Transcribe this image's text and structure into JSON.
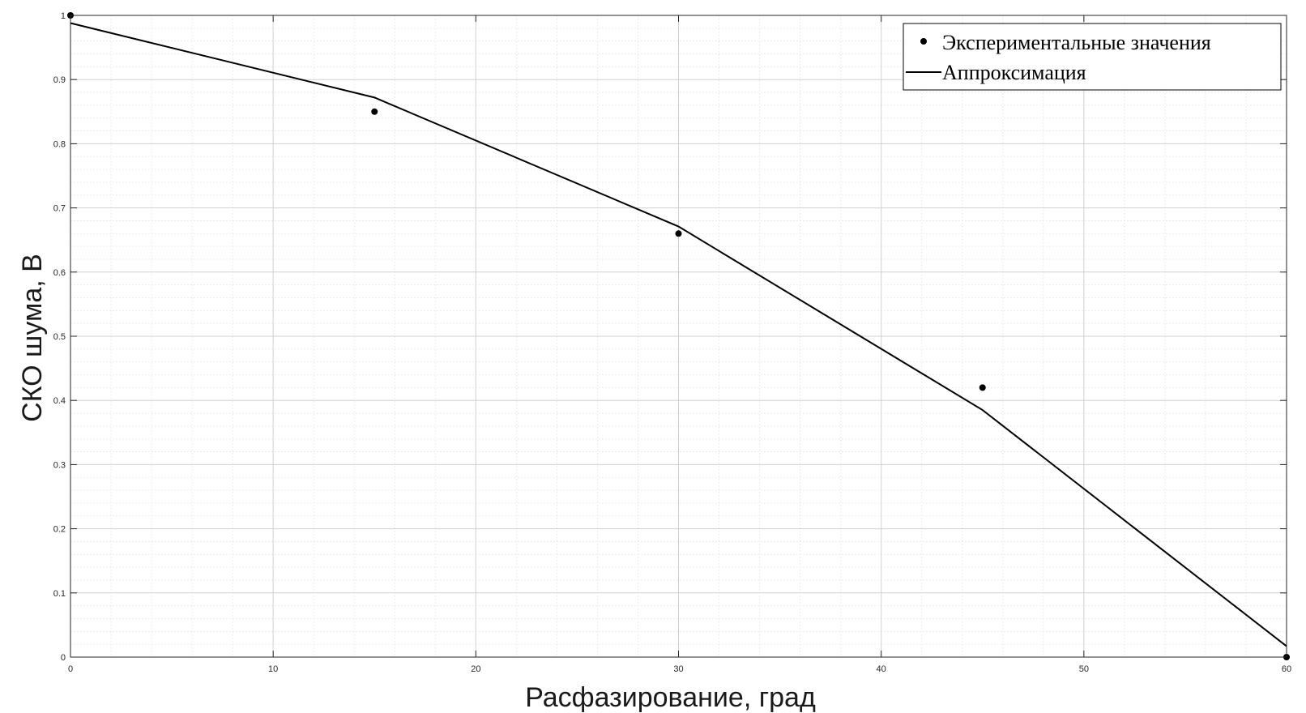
{
  "chart_data": {
    "type": "line",
    "xlabel": "Расфазирование, град",
    "ylabel": "СКО шума, В",
    "xlim": [
      0,
      60
    ],
    "ylim": [
      0,
      1
    ],
    "x_ticks": [
      "0",
      "10",
      "20",
      "30",
      "40",
      "50",
      "60"
    ],
    "y_ticks": [
      "0",
      "0.1",
      "0.2",
      "0.3",
      "0.4",
      "0.5",
      "0.6",
      "0.7",
      "0.8",
      "0.9",
      "1"
    ],
    "grid": true,
    "minor_grid": true,
    "legend_position": "top-right",
    "series": [
      {
        "name": "Экспериментальные значения",
        "style": "markers",
        "color": "#000000",
        "x": [
          0,
          15,
          30,
          45,
          60
        ],
        "y": [
          1.0,
          0.85,
          0.66,
          0.42,
          0.0
        ]
      },
      {
        "name": "Аппроксимация",
        "style": "line",
        "color": "#000000",
        "x": [
          0,
          15,
          30,
          45,
          60
        ],
        "y": [
          0.988,
          0.872,
          0.671,
          0.385,
          0.017
        ]
      }
    ]
  }
}
